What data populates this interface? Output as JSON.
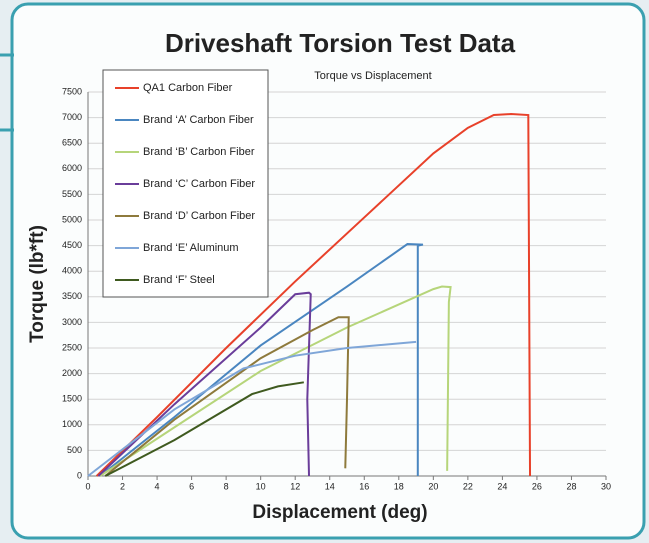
{
  "chart_data": {
    "type": "line",
    "title": "Driveshaft Torsion Test Data",
    "subtitle": "Torque vs Displacement",
    "x_label": "Displacement (deg)",
    "y_label": "Torque (lb*ft)",
    "xlim": [
      0,
      30
    ],
    "xticks": [
      0,
      2,
      4,
      6,
      8,
      10,
      12,
      14,
      16,
      18,
      20,
      22,
      24,
      26,
      28,
      30
    ],
    "ylim": [
      0,
      7500
    ],
    "yticks": [
      0,
      500,
      1000,
      1500,
      2000,
      2500,
      3000,
      3500,
      4000,
      4500,
      5000,
      5500,
      6000,
      6500,
      7000,
      7500
    ],
    "grid": true,
    "legend": "upper left",
    "series": [
      {
        "name": "QA1 Carbon Fiber",
        "color": "#e8412a",
        "x": [
          0.5,
          4,
          8,
          12,
          16,
          20,
          22,
          23.5,
          24.5,
          25.5,
          25.6
        ],
        "values": [
          0,
          1150,
          2500,
          3800,
          5050,
          6300,
          6800,
          7050,
          7070,
          7050,
          0
        ]
      },
      {
        "name": "Brand ‘A’ Carbon Fiber",
        "color": "#4a86c0",
        "x": [
          0.7,
          5,
          10,
          15,
          18.5,
          19.4,
          19.1,
          19.1
        ],
        "values": [
          0,
          1150,
          2550,
          3700,
          4530,
          4520,
          4500,
          0
        ]
      },
      {
        "name": "Brand ‘B’ Carbon Fiber",
        "color": "#b6d57a",
        "x": [
          0.7,
          5,
          10,
          15,
          20,
          20.5,
          21,
          20.9,
          20.8
        ],
        "values": [
          0,
          950,
          2050,
          2900,
          3650,
          3700,
          3690,
          3400,
          100
        ]
      },
      {
        "name": "Brand ‘C’ Carbon Fiber",
        "color": "#6a3d9a",
        "x": [
          0.6,
          5,
          10,
          12,
          12.8,
          12.9,
          12.7,
          12.8
        ],
        "values": [
          0,
          1400,
          2900,
          3550,
          3580,
          3550,
          1500,
          0
        ]
      },
      {
        "name": "Brand ‘D’ Carbon Fiber",
        "color": "#8e7a3c",
        "x": [
          1,
          5,
          10,
          13,
          14.5,
          15.1,
          15,
          14.9
        ],
        "values": [
          0,
          1100,
          2300,
          2850,
          3100,
          3100,
          1500,
          150
        ]
      },
      {
        "name": "Brand ‘E’ Aluminum",
        "color": "#7fa6d8",
        "x": [
          0,
          5,
          9,
          12,
          15,
          19
        ],
        "values": [
          0,
          1300,
          2100,
          2350,
          2500,
          2620
        ]
      },
      {
        "name": "Brand ‘F’ Steel",
        "color": "#3f5a1f",
        "x": [
          1,
          5,
          9.5,
          11,
          12.5
        ],
        "values": [
          0,
          700,
          1600,
          1750,
          1830
        ]
      }
    ]
  }
}
